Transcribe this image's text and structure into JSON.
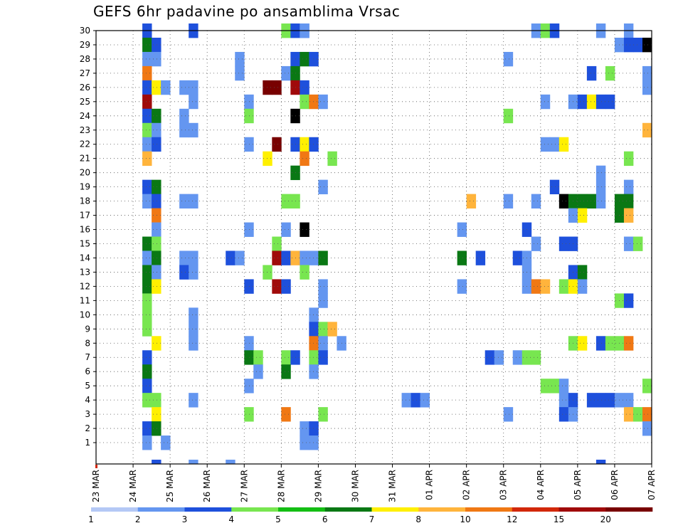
{
  "chart_data": {
    "type": "heatmap",
    "title": "GEFS 6hr padavine po ansamblima Vrsac",
    "xlabel": "",
    "ylabel": "",
    "x_range": [
      0,
      60
    ],
    "x_tick_labels": [
      "23 MAR",
      "24 MAR",
      "25 MAR",
      "26 MAR",
      "27 MAR",
      "28 MAR",
      "29 MAR",
      "30 MAR",
      "31 MAR",
      "01 APR",
      "02 APR",
      "03 APR",
      "04 APR",
      "05 APR",
      "06 APR",
      "07 APR"
    ],
    "y_range": [
      0,
      30
    ],
    "y_tick_labels": [
      "1",
      "2",
      "3",
      "4",
      "5",
      "6",
      "7",
      "8",
      "9",
      "10",
      "11",
      "12",
      "13",
      "14",
      "15",
      "16",
      "17",
      "18",
      "19",
      "20",
      "21",
      "22",
      "23",
      "24",
      "25",
      "26",
      "27",
      "28",
      "29",
      "30"
    ],
    "grid": true,
    "colorbar": {
      "bounds": [
        "1",
        "2",
        "3",
        "4",
        "5",
        "6",
        "7",
        "8",
        "10",
        "12",
        "15",
        "20"
      ],
      "colors": [
        "#b4c8f5",
        "#6496f0",
        "#1e50dc",
        "#78e650",
        "#14be14",
        "#0a7814",
        "#fff000",
        "#ffb43c",
        "#f07814",
        "#d2280a",
        "#a00a0a",
        "#780000"
      ]
    },
    "cells": [
      [
        5,
        30,
        2
      ],
      [
        10,
        30,
        2
      ],
      [
        20,
        30,
        3
      ],
      [
        21,
        30,
        2
      ],
      [
        22,
        30,
        1
      ],
      [
        22,
        30,
        1
      ],
      [
        47,
        30,
        1
      ],
      [
        48,
        30,
        3
      ],
      [
        49,
        30,
        2
      ],
      [
        54,
        30,
        1
      ],
      [
        57,
        30,
        1
      ],
      [
        5,
        29,
        5
      ],
      [
        6,
        29,
        2
      ],
      [
        56,
        29,
        1
      ],
      [
        57,
        29,
        2
      ],
      [
        58,
        29,
        2
      ],
      [
        59,
        29,
        12
      ],
      [
        5,
        28,
        1
      ],
      [
        6,
        28,
        1
      ],
      [
        15,
        28,
        1
      ],
      [
        21,
        28,
        2
      ],
      [
        22,
        28,
        5
      ],
      [
        23,
        28,
        2
      ],
      [
        44,
        28,
        1
      ],
      [
        5,
        27,
        8
      ],
      [
        15,
        27,
        1
      ],
      [
        20,
        27,
        1
      ],
      [
        21,
        27,
        5
      ],
      [
        53,
        27,
        2
      ],
      [
        55,
        27,
        3
      ],
      [
        59,
        27,
        1
      ],
      [
        5,
        26,
        2
      ],
      [
        6,
        26,
        6
      ],
      [
        7,
        26,
        1
      ],
      [
        9,
        26,
        1
      ],
      [
        10,
        26,
        1
      ],
      [
        18,
        26,
        11
      ],
      [
        19,
        26,
        11
      ],
      [
        21,
        26,
        10
      ],
      [
        22,
        26,
        2
      ],
      [
        59,
        26,
        1
      ],
      [
        5,
        25,
        10
      ],
      [
        10,
        25,
        1
      ],
      [
        16,
        25,
        1
      ],
      [
        22,
        25,
        3
      ],
      [
        23,
        25,
        8
      ],
      [
        24,
        25,
        1
      ],
      [
        48,
        25,
        1
      ],
      [
        51,
        25,
        1
      ],
      [
        52,
        25,
        2
      ],
      [
        53,
        25,
        6
      ],
      [
        54,
        25,
        2
      ],
      [
        55,
        25,
        2
      ],
      [
        5,
        24,
        2
      ],
      [
        6,
        24,
        5
      ],
      [
        9,
        24,
        1
      ],
      [
        16,
        24,
        3
      ],
      [
        21,
        24,
        13
      ],
      [
        44,
        24,
        3
      ],
      [
        5,
        23,
        3
      ],
      [
        6,
        23,
        1
      ],
      [
        9,
        23,
        1
      ],
      [
        10,
        23,
        1
      ],
      [
        59,
        23,
        7
      ],
      [
        5,
        22,
        1
      ],
      [
        6,
        22,
        2
      ],
      [
        16,
        22,
        1
      ],
      [
        19,
        22,
        11
      ],
      [
        21,
        22,
        2
      ],
      [
        22,
        22,
        6
      ],
      [
        23,
        22,
        2
      ],
      [
        48,
        22,
        1
      ],
      [
        49,
        22,
        1
      ],
      [
        50,
        22,
        6
      ],
      [
        5,
        21,
        7
      ],
      [
        18,
        21,
        6
      ],
      [
        22,
        21,
        8
      ],
      [
        25,
        21,
        3
      ],
      [
        57,
        21,
        3
      ],
      [
        21,
        20,
        5
      ],
      [
        54,
        20,
        1
      ],
      [
        5,
        19,
        2
      ],
      [
        6,
        19,
        5
      ],
      [
        24,
        19,
        1
      ],
      [
        49,
        19,
        2
      ],
      [
        54,
        19,
        1
      ],
      [
        57,
        19,
        1
      ],
      [
        5,
        18,
        1
      ],
      [
        6,
        18,
        2
      ],
      [
        9,
        18,
        1
      ],
      [
        10,
        18,
        1
      ],
      [
        20,
        18,
        3
      ],
      [
        21,
        18,
        3
      ],
      [
        40,
        18,
        7
      ],
      [
        44,
        18,
        1
      ],
      [
        47,
        18,
        1
      ],
      [
        50,
        18,
        13
      ],
      [
        51,
        18,
        5
      ],
      [
        52,
        18,
        5
      ],
      [
        53,
        18,
        5
      ],
      [
        54,
        18,
        1
      ],
      [
        56,
        18,
        5
      ],
      [
        57,
        18,
        5
      ],
      [
        6,
        17,
        8
      ],
      [
        51,
        17,
        1
      ],
      [
        52,
        17,
        6
      ],
      [
        56,
        17,
        5
      ],
      [
        57,
        17,
        7
      ],
      [
        6,
        16,
        1
      ],
      [
        16,
        16,
        1
      ],
      [
        20,
        16,
        1
      ],
      [
        22,
        16,
        13
      ],
      [
        39,
        16,
        1
      ],
      [
        46,
        16,
        2
      ],
      [
        5,
        15,
        5
      ],
      [
        6,
        15,
        3
      ],
      [
        19,
        15,
        3
      ],
      [
        47,
        15,
        1
      ],
      [
        50,
        15,
        2
      ],
      [
        51,
        15,
        2
      ],
      [
        57,
        15,
        1
      ],
      [
        58,
        15,
        3
      ],
      [
        5,
        14,
        1
      ],
      [
        6,
        14,
        5
      ],
      [
        9,
        14,
        1
      ],
      [
        10,
        14,
        1
      ],
      [
        14,
        14,
        2
      ],
      [
        15,
        14,
        1
      ],
      [
        19,
        14,
        10
      ],
      [
        20,
        14,
        2
      ],
      [
        21,
        14,
        7
      ],
      [
        22,
        14,
        1
      ],
      [
        23,
        14,
        1
      ],
      [
        24,
        14,
        5
      ],
      [
        39,
        14,
        5
      ],
      [
        41,
        14,
        2
      ],
      [
        45,
        14,
        2
      ],
      [
        46,
        14,
        1
      ],
      [
        5,
        13,
        5
      ],
      [
        6,
        13,
        1
      ],
      [
        9,
        13,
        2
      ],
      [
        10,
        13,
        1
      ],
      [
        18,
        13,
        3
      ],
      [
        22,
        13,
        3
      ],
      [
        46,
        13,
        1
      ],
      [
        51,
        13,
        2
      ],
      [
        52,
        13,
        5
      ],
      [
        5,
        12,
        5
      ],
      [
        6,
        12,
        6
      ],
      [
        16,
        12,
        2
      ],
      [
        19,
        12,
        10
      ],
      [
        20,
        12,
        2
      ],
      [
        24,
        12,
        1
      ],
      [
        39,
        12,
        1
      ],
      [
        46,
        12,
        1
      ],
      [
        47,
        12,
        8
      ],
      [
        48,
        12,
        7
      ],
      [
        50,
        12,
        3
      ],
      [
        51,
        12,
        6
      ],
      [
        52,
        12,
        1
      ],
      [
        5,
        11,
        3
      ],
      [
        24,
        11,
        1
      ],
      [
        56,
        11,
        3
      ],
      [
        57,
        11,
        2
      ],
      [
        5,
        10,
        3
      ],
      [
        10,
        10,
        1
      ],
      [
        23,
        10,
        1
      ],
      [
        5,
        9,
        3
      ],
      [
        10,
        9,
        1
      ],
      [
        23,
        9,
        2
      ],
      [
        24,
        9,
        3
      ],
      [
        25,
        9,
        7
      ],
      [
        6,
        8,
        6
      ],
      [
        10,
        8,
        1
      ],
      [
        16,
        8,
        1
      ],
      [
        23,
        8,
        8
      ],
      [
        24,
        8,
        1
      ],
      [
        26,
        8,
        1
      ],
      [
        51,
        8,
        3
      ],
      [
        52,
        8,
        6
      ],
      [
        54,
        8,
        2
      ],
      [
        55,
        8,
        3
      ],
      [
        56,
        8,
        3
      ],
      [
        57,
        8,
        8
      ],
      [
        5,
        7,
        2
      ],
      [
        16,
        7,
        5
      ],
      [
        17,
        7,
        3
      ],
      [
        20,
        7,
        3
      ],
      [
        21,
        7,
        2
      ],
      [
        23,
        7,
        3
      ],
      [
        24,
        7,
        2
      ],
      [
        42,
        7,
        2
      ],
      [
        43,
        7,
        1
      ],
      [
        45,
        7,
        1
      ],
      [
        46,
        7,
        3
      ],
      [
        47,
        7,
        3
      ],
      [
        5,
        6,
        5
      ],
      [
        17,
        6,
        1
      ],
      [
        20,
        6,
        5
      ],
      [
        23,
        6,
        1
      ],
      [
        5,
        5,
        2
      ],
      [
        16,
        5,
        1
      ],
      [
        48,
        5,
        3
      ],
      [
        49,
        5,
        3
      ],
      [
        50,
        5,
        1
      ],
      [
        59,
        5,
        3
      ],
      [
        5,
        4,
        3
      ],
      [
        6,
        4,
        3
      ],
      [
        10,
        4,
        1
      ],
      [
        33,
        4,
        1
      ],
      [
        34,
        4,
        2
      ],
      [
        35,
        4,
        1
      ],
      [
        50,
        4,
        1
      ],
      [
        51,
        4,
        2
      ],
      [
        53,
        4,
        2
      ],
      [
        54,
        4,
        2
      ],
      [
        55,
        4,
        2
      ],
      [
        56,
        4,
        1
      ],
      [
        57,
        4,
        1
      ],
      [
        6,
        3,
        6
      ],
      [
        16,
        3,
        3
      ],
      [
        20,
        3,
        8
      ],
      [
        24,
        3,
        3
      ],
      [
        44,
        3,
        1
      ],
      [
        50,
        3,
        2
      ],
      [
        51,
        3,
        1
      ],
      [
        57,
        3,
        7
      ],
      [
        58,
        3,
        3
      ],
      [
        59,
        3,
        8
      ],
      [
        5,
        2,
        2
      ],
      [
        6,
        2,
        5
      ],
      [
        22,
        2,
        1
      ],
      [
        23,
        2,
        2
      ],
      [
        59,
        2,
        1
      ],
      [
        5,
        1,
        1
      ],
      [
        7,
        1,
        1
      ],
      [
        22,
        1,
        1
      ],
      [
        23,
        1,
        1
      ],
      [
        6,
        0,
        2
      ],
      [
        10,
        0,
        1
      ],
      [
        14,
        0,
        1
      ],
      [
        54,
        0,
        2
      ]
    ]
  }
}
